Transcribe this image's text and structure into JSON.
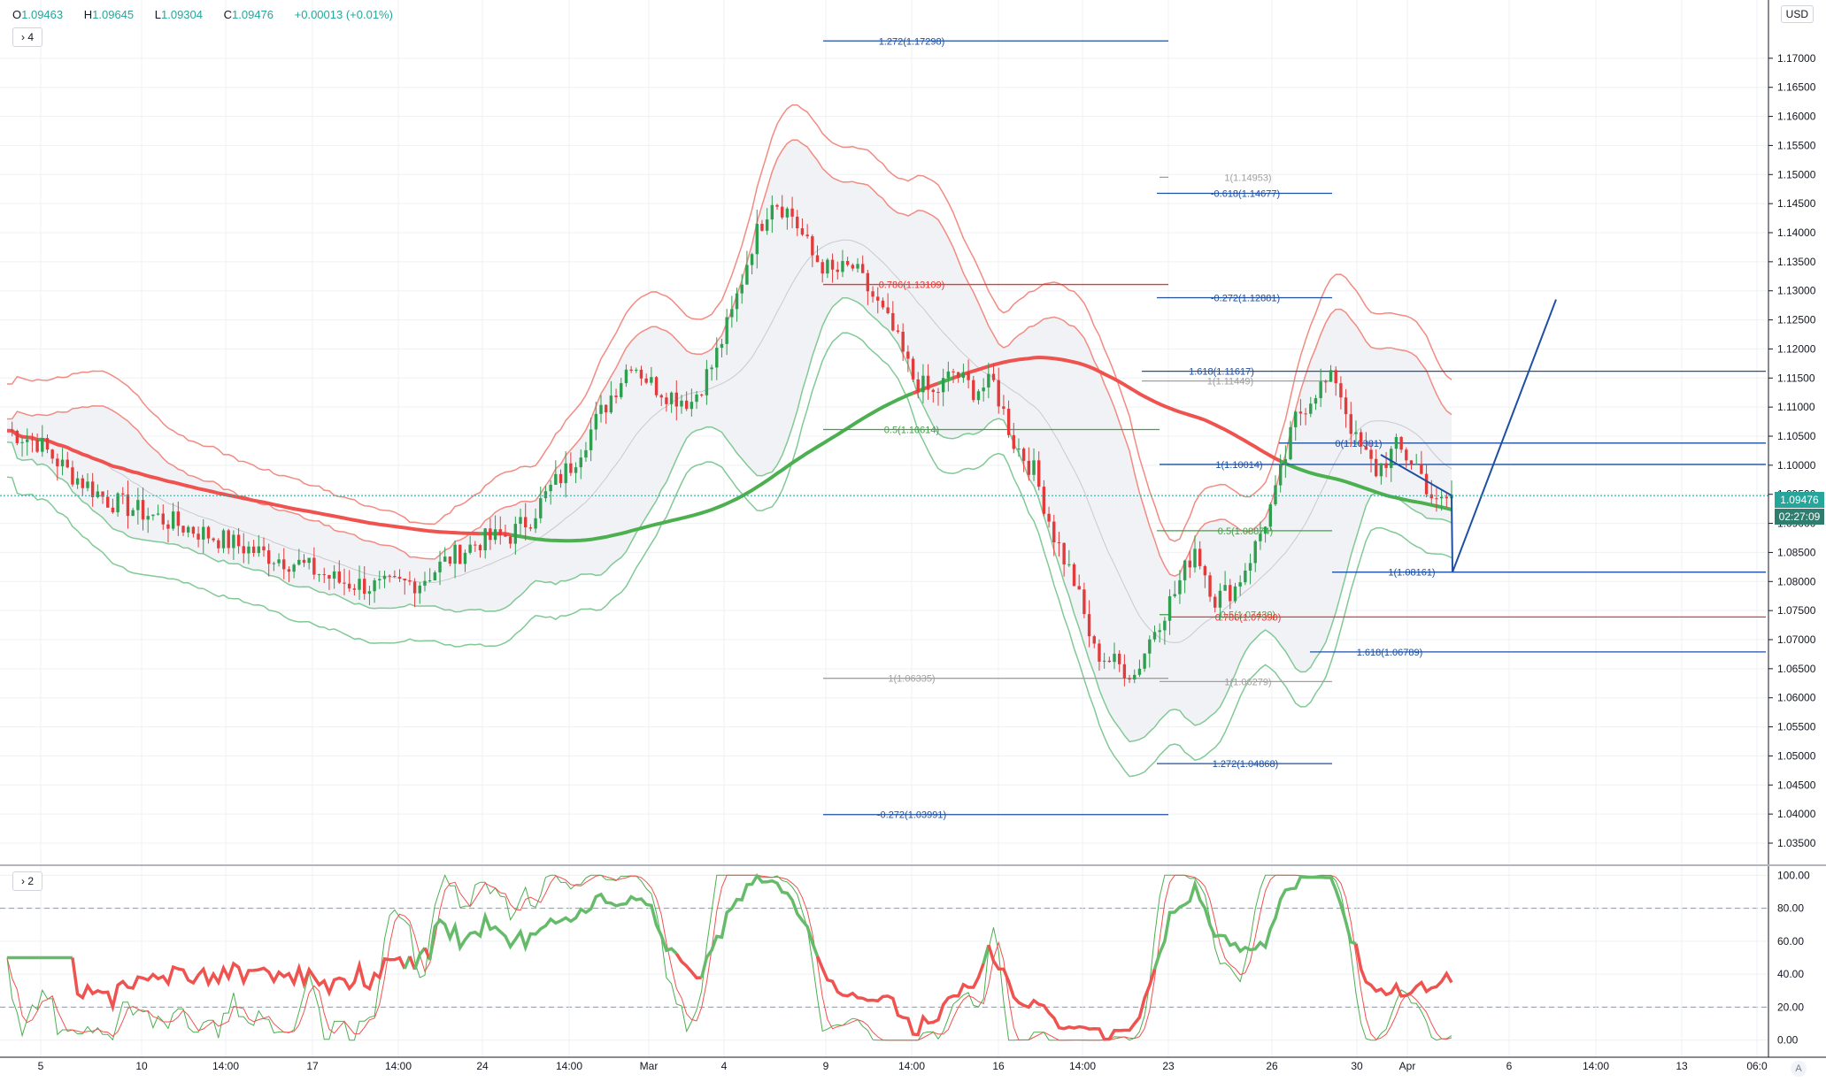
{
  "legend": {
    "o_label": "O",
    "o_value": "1.09463",
    "h_label": "H",
    "h_value": "1.09645",
    "l_label": "L",
    "l_value": "1.09304",
    "c_label": "C",
    "c_value": "1.09476",
    "change": "+0.00013 (+0.01%)"
  },
  "pane_toggles": {
    "main": "› 4",
    "oscillator": "› 2"
  },
  "currency_label": "USD",
  "last_price": {
    "value": "1.09476",
    "countdown": "02:27:09"
  },
  "auto_button": "A",
  "colors": {
    "bull": "#2e9e4f",
    "bear": "#e23b3b",
    "upper_band": "#f28b82",
    "lower_band": "#81c995",
    "ema": "#ef5350",
    "ema_green": "#4caf50",
    "fib_blue": "#1e4fa3",
    "fib_red": "#e53935",
    "fib_green": "#43a047",
    "fib_gray": "#a0a0a0",
    "price_tag": "#26a69a"
  },
  "chart_data": {
    "type": "candlestick",
    "price_axis": {
      "min": 1.035,
      "max": 1.175,
      "ticks": [
        "1.17000",
        "1.16500",
        "1.16000",
        "1.15500",
        "1.15000",
        "1.14500",
        "1.14000",
        "1.13500",
        "1.13000",
        "1.12500",
        "1.12000",
        "1.11500",
        "1.11000",
        "1.10500",
        "1.10000",
        "1.09500",
        "1.09000",
        "1.08500",
        "1.08000",
        "1.07500",
        "1.07000",
        "1.06500",
        "1.06000",
        "1.05500",
        "1.05000",
        "1.04500",
        "1.04000",
        "1.03500"
      ]
    },
    "time_axis": {
      "ticks": [
        "5",
        "10",
        "14:00",
        "17",
        "14:00",
        "24",
        "14:00",
        "Mar",
        "4",
        "9",
        "14:00",
        "16",
        "14:00",
        "23",
        "26",
        "30",
        "Apr",
        "6",
        "14:00",
        "13",
        "06:0"
      ]
    },
    "oscillator_axis": {
      "min": -5,
      "max": 105,
      "ticks": [
        "100.00",
        "80.00",
        "60.00",
        "40.00",
        "20.00",
        "0.00"
      ],
      "dashed_levels": [
        80,
        20
      ]
    },
    "price_path": [
      [
        0,
        1.106
      ],
      [
        6,
        1.104
      ],
      [
        12,
        1.099
      ],
      [
        20,
        1.094
      ],
      [
        30,
        1.091
      ],
      [
        40,
        1.088
      ],
      [
        50,
        1.085
      ],
      [
        58,
        1.083
      ],
      [
        66,
        1.08
      ],
      [
        74,
        1.079
      ],
      [
        82,
        1.08
      ],
      [
        88,
        1.084
      ],
      [
        94,
        1.087
      ],
      [
        100,
        1.088
      ],
      [
        104,
        1.091
      ],
      [
        108,
        1.096
      ],
      [
        112,
        1.1
      ],
      [
        116,
        1.106
      ],
      [
        120,
        1.112
      ],
      [
        124,
        1.118
      ],
      [
        128,
        1.114
      ],
      [
        132,
        1.112
      ],
      [
        136,
        1.111
      ],
      [
        140,
        1.117
      ],
      [
        144,
        1.126
      ],
      [
        148,
        1.138
      ],
      [
        152,
        1.146
      ],
      [
        156,
        1.143
      ],
      [
        160,
        1.136
      ],
      [
        164,
        1.133
      ],
      [
        168,
        1.134
      ],
      [
        172,
        1.129
      ],
      [
        176,
        1.123
      ],
      [
        180,
        1.115
      ],
      [
        184,
        1.112
      ],
      [
        188,
        1.116
      ],
      [
        192,
        1.113
      ],
      [
        196,
        1.114
      ],
      [
        200,
        1.104
      ],
      [
        204,
        1.099
      ],
      [
        208,
        1.088
      ],
      [
        212,
        1.08
      ],
      [
        216,
        1.068
      ],
      [
        220,
        1.066
      ],
      [
        224,
        1.064
      ],
      [
        228,
        1.072
      ],
      [
        232,
        1.078
      ],
      [
        236,
        1.086
      ],
      [
        240,
        1.077
      ],
      [
        244,
        1.079
      ],
      [
        248,
        1.086
      ],
      [
        252,
        1.095
      ],
      [
        256,
        1.108
      ],
      [
        260,
        1.113
      ],
      [
        264,
        1.115
      ],
      [
        268,
        1.104
      ],
      [
        272,
        1.099
      ],
      [
        276,
        1.103
      ],
      [
        280,
        1.1
      ],
      [
        284,
        1.093
      ],
      [
        287,
        1.0948
      ]
    ],
    "fib_levels": [
      {
        "label": "1.272(1.17298)",
        "value": 1.17298,
        "color": "fib_blue"
      },
      {
        "label": "1(1.14953)",
        "value": 1.14953,
        "color": "fib_gray"
      },
      {
        "label": "-0.618(1.14677)",
        "value": 1.14677,
        "color": "fib_blue"
      },
      {
        "label": "0.786(1.13109)",
        "value": 1.13109,
        "color": "fib_red"
      },
      {
        "label": "-0.272(1.12881)",
        "value": 1.12881,
        "color": "fib_blue"
      },
      {
        "label": "1.618(1.11617)",
        "value": 1.11617,
        "color": "fib_blue"
      },
      {
        "label": "1(1.11449)",
        "value": 1.11449,
        "color": "fib_gray"
      },
      {
        "label": "0.5(1.10614)",
        "value": 1.10614,
        "color": "fib_green"
      },
      {
        "label": "0(1.10381)",
        "value": 1.10381,
        "color": "fib_blue"
      },
      {
        "label": "1(1.10014)",
        "value": 1.10014,
        "color": "fib_blue"
      },
      {
        "label": "0.5(1.08874)",
        "value": 1.08874,
        "color": "fib_green"
      },
      {
        "label": "1(1.08161)",
        "value": 1.08161,
        "color": "fib_blue"
      },
      {
        "label": "0.5(1.07430)",
        "value": 1.0743,
        "color": "fib_green"
      },
      {
        "label": "0.786(1.07390)",
        "value": 1.0739,
        "color": "fib_red"
      },
      {
        "label": "1.618(1.06789)",
        "value": 1.06789,
        "color": "fib_blue"
      },
      {
        "label": "1(1.06335)",
        "value": 1.06335,
        "color": "fib_gray"
      },
      {
        "label": "1(1.06279)",
        "value": 1.06279,
        "color": "fib_gray"
      },
      {
        "label": "1.272(1.04868)",
        "value": 1.04868,
        "color": "fib_blue"
      },
      {
        "label": "-0.272(1.03991)",
        "value": 1.03991,
        "color": "fib_blue"
      }
    ]
  }
}
